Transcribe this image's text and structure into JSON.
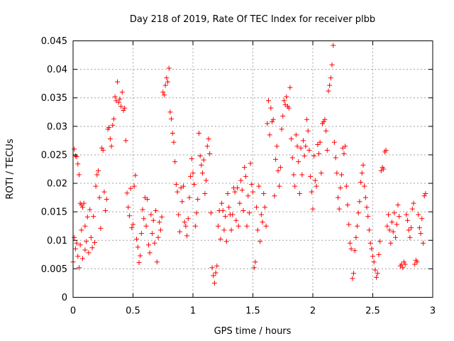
{
  "chart_data": {
    "type": "scatter",
    "title": "Day 218 of 2019, Rate Of TEC Index for receiver plbb",
    "xlabel": "GPS time / hours",
    "ylabel": "ROTI / TECUs",
    "xlim": [
      0,
      3
    ],
    "ylim": [
      0,
      0.045
    ],
    "xticks": [
      0,
      0.5,
      1,
      1.5,
      2,
      2.5,
      3
    ],
    "xtick_labels": [
      "0",
      "0.5",
      "1",
      "1.5",
      "2",
      "2.5",
      "3"
    ],
    "yticks": [
      0,
      0.005,
      0.01,
      0.015,
      0.02,
      0.025,
      0.03,
      0.035,
      0.04,
      0.045
    ],
    "ytick_labels": [
      "0",
      "0.005",
      "0.01",
      "0.015",
      "0.02",
      "0.025",
      "0.03",
      "0.035",
      "0.04",
      "0.045"
    ],
    "grid": true,
    "marker": "+",
    "color": "#ff0000",
    "series": [
      {
        "name": "ROTI",
        "points": [
          [
            0.0,
            0.0062
          ],
          [
            0.01,
            0.026
          ],
          [
            0.01,
            0.0105
          ],
          [
            0.02,
            0.0248
          ],
          [
            0.02,
            0.0085
          ],
          [
            0.03,
            0.0095
          ],
          [
            0.03,
            0.0247
          ],
          [
            0.04,
            0.0072
          ],
          [
            0.04,
            0.0234
          ],
          [
            0.05,
            0.0052
          ],
          [
            0.05,
            0.0215
          ],
          [
            0.06,
            0.0092
          ],
          [
            0.06,
            0.0165
          ],
          [
            0.07,
            0.0162
          ],
          [
            0.07,
            0.0118
          ],
          [
            0.08,
            0.0068
          ],
          [
            0.08,
            0.0158
          ],
          [
            0.09,
            0.0165
          ],
          [
            0.1,
            0.0083
          ],
          [
            0.1,
            0.0125
          ],
          [
            0.11,
            0.0098
          ],
          [
            0.12,
            0.0141
          ],
          [
            0.13,
            0.0078
          ],
          [
            0.14,
            0.0154
          ],
          [
            0.15,
            0.0105
          ],
          [
            0.16,
            0.0087
          ],
          [
            0.17,
            0.0142
          ],
          [
            0.18,
            0.0096
          ],
          [
            0.19,
            0.0195
          ],
          [
            0.2,
            0.0215
          ],
          [
            0.21,
            0.0222
          ],
          [
            0.22,
            0.0175
          ],
          [
            0.23,
            0.0121
          ],
          [
            0.24,
            0.0262
          ],
          [
            0.25,
            0.0258
          ],
          [
            0.26,
            0.0185
          ],
          [
            0.27,
            0.0152
          ],
          [
            0.28,
            0.0172
          ],
          [
            0.29,
            0.0295
          ],
          [
            0.3,
            0.0298
          ],
          [
            0.31,
            0.0278
          ],
          [
            0.32,
            0.0265
          ],
          [
            0.33,
            0.0302
          ],
          [
            0.34,
            0.0313
          ],
          [
            0.35,
            0.0352
          ],
          [
            0.36,
            0.0345
          ],
          [
            0.37,
            0.0378
          ],
          [
            0.38,
            0.0342
          ],
          [
            0.39,
            0.0348
          ],
          [
            0.4,
            0.0335
          ],
          [
            0.41,
            0.036
          ],
          [
            0.42,
            0.0328
          ],
          [
            0.43,
            0.0332
          ],
          [
            0.44,
            0.0275
          ],
          [
            0.45,
            0.0183
          ],
          [
            0.46,
            0.0158
          ],
          [
            0.47,
            0.0143
          ],
          [
            0.48,
            0.0191
          ],
          [
            0.49,
            0.0122
          ],
          [
            0.5,
            0.0128
          ],
          [
            0.51,
            0.0195
          ],
          [
            0.52,
            0.0214
          ],
          [
            0.53,
            0.0102
          ],
          [
            0.54,
            0.0088
          ],
          [
            0.55,
            0.0061
          ],
          [
            0.56,
            0.0073
          ],
          [
            0.57,
            0.0112
          ],
          [
            0.58,
            0.0154
          ],
          [
            0.59,
            0.0138
          ],
          [
            0.6,
            0.0175
          ],
          [
            0.61,
            0.0125
          ],
          [
            0.62,
            0.0172
          ],
          [
            0.63,
            0.0092
          ],
          [
            0.64,
            0.0078
          ],
          [
            0.65,
            0.0145
          ],
          [
            0.66,
            0.0112
          ],
          [
            0.67,
            0.0135
          ],
          [
            0.68,
            0.0095
          ],
          [
            0.69,
            0.0152
          ],
          [
            0.7,
            0.0062
          ],
          [
            0.71,
            0.0105
          ],
          [
            0.72,
            0.0132
          ],
          [
            0.73,
            0.0118
          ],
          [
            0.74,
            0.0141
          ],
          [
            0.75,
            0.036
          ],
          [
            0.76,
            0.0355
          ],
          [
            0.77,
            0.0372
          ],
          [
            0.78,
            0.0385
          ],
          [
            0.79,
            0.0378
          ],
          [
            0.8,
            0.0402
          ],
          [
            0.81,
            0.0325
          ],
          [
            0.82,
            0.0313
          ],
          [
            0.83,
            0.0288
          ],
          [
            0.84,
            0.0272
          ],
          [
            0.85,
            0.0238
          ],
          [
            0.86,
            0.0198
          ],
          [
            0.87,
            0.0185
          ],
          [
            0.88,
            0.0145
          ],
          [
            0.89,
            0.0115
          ],
          [
            0.9,
            0.0192
          ],
          [
            0.91,
            0.0168
          ],
          [
            0.92,
            0.0195
          ],
          [
            0.93,
            0.0132
          ],
          [
            0.94,
            0.0125
          ],
          [
            0.95,
            0.0108
          ],
          [
            0.96,
            0.0138
          ],
          [
            0.97,
            0.0175
          ],
          [
            0.98,
            0.0212
          ],
          [
            0.99,
            0.0243
          ],
          [
            1.0,
            0.0218
          ],
          [
            1.01,
            0.0198
          ],
          [
            1.02,
            0.0125
          ],
          [
            1.03,
            0.0148
          ],
          [
            1.04,
            0.0172
          ],
          [
            1.05,
            0.0288
          ],
          [
            1.06,
            0.0248
          ],
          [
            1.07,
            0.0232
          ],
          [
            1.08,
            0.0218
          ],
          [
            1.09,
            0.0241
          ],
          [
            1.1,
            0.0182
          ],
          [
            1.11,
            0.0205
          ],
          [
            1.12,
            0.0265
          ],
          [
            1.13,
            0.0278
          ],
          [
            1.14,
            0.0252
          ],
          [
            1.15,
            0.0148
          ],
          [
            1.16,
            0.0052
          ],
          [
            1.17,
            0.0038
          ],
          [
            1.18,
            0.0025
          ],
          [
            1.19,
            0.0043
          ],
          [
            1.2,
            0.0055
          ],
          [
            1.21,
            0.0125
          ],
          [
            1.22,
            0.0152
          ],
          [
            1.23,
            0.0102
          ],
          [
            1.24,
            0.0165
          ],
          [
            1.25,
            0.0152
          ],
          [
            1.26,
            0.0118
          ],
          [
            1.27,
            0.0142
          ],
          [
            1.28,
            0.0098
          ],
          [
            1.29,
            0.0182
          ],
          [
            1.3,
            0.0158
          ],
          [
            1.31,
            0.0145
          ],
          [
            1.32,
            0.0118
          ],
          [
            1.33,
            0.0145
          ],
          [
            1.34,
            0.0192
          ],
          [
            1.35,
            0.0185
          ],
          [
            1.36,
            0.0135
          ],
          [
            1.37,
            0.0192
          ],
          [
            1.38,
            0.0125
          ],
          [
            1.39,
            0.0165
          ],
          [
            1.4,
            0.0205
          ],
          [
            1.41,
            0.0188
          ],
          [
            1.42,
            0.0152
          ],
          [
            1.43,
            0.0228
          ],
          [
            1.44,
            0.0212
          ],
          [
            1.45,
            0.0125
          ],
          [
            1.46,
            0.0178
          ],
          [
            1.47,
            0.0148
          ],
          [
            1.48,
            0.0235
          ],
          [
            1.49,
            0.0198
          ],
          [
            1.5,
            0.0185
          ],
          [
            1.51,
            0.0052
          ],
          [
            1.52,
            0.0062
          ],
          [
            1.53,
            0.0158
          ],
          [
            1.54,
            0.0118
          ],
          [
            1.55,
            0.0195
          ],
          [
            1.56,
            0.0098
          ],
          [
            1.57,
            0.0145
          ],
          [
            1.58,
            0.0132
          ],
          [
            1.59,
            0.0182
          ],
          [
            1.6,
            0.0158
          ],
          [
            1.61,
            0.0125
          ],
          [
            1.62,
            0.0305
          ],
          [
            1.63,
            0.0345
          ],
          [
            1.64,
            0.0285
          ],
          [
            1.65,
            0.0332
          ],
          [
            1.66,
            0.0308
          ],
          [
            1.67,
            0.0312
          ],
          [
            1.68,
            0.0178
          ],
          [
            1.69,
            0.0242
          ],
          [
            1.7,
            0.0265
          ],
          [
            1.71,
            0.0222
          ],
          [
            1.72,
            0.0195
          ],
          [
            1.73,
            0.0228
          ],
          [
            1.74,
            0.0295
          ],
          [
            1.75,
            0.0318
          ],
          [
            1.76,
            0.0345
          ],
          [
            1.77,
            0.0338
          ],
          [
            1.78,
            0.0352
          ],
          [
            1.79,
            0.0335
          ],
          [
            1.8,
            0.0332
          ],
          [
            1.81,
            0.0368
          ],
          [
            1.82,
            0.0278
          ],
          [
            1.83,
            0.0245
          ],
          [
            1.84,
            0.0215
          ],
          [
            1.85,
            0.0195
          ],
          [
            1.86,
            0.0285
          ],
          [
            1.87,
            0.0265
          ],
          [
            1.88,
            0.0238
          ],
          [
            1.89,
            0.0182
          ],
          [
            1.9,
            0.0262
          ],
          [
            1.91,
            0.0215
          ],
          [
            1.92,
            0.0275
          ],
          [
            1.93,
            0.0248
          ],
          [
            1.94,
            0.0265
          ],
          [
            1.95,
            0.0312
          ],
          [
            1.96,
            0.0292
          ],
          [
            1.97,
            0.0258
          ],
          [
            1.98,
            0.0212
          ],
          [
            1.99,
            0.0185
          ],
          [
            2.0,
            0.0155
          ],
          [
            2.01,
            0.0248
          ],
          [
            2.02,
            0.0205
          ],
          [
            2.03,
            0.0195
          ],
          [
            2.04,
            0.0268
          ],
          [
            2.05,
            0.0252
          ],
          [
            2.06,
            0.0272
          ],
          [
            2.07,
            0.0218
          ],
          [
            2.08,
            0.0305
          ],
          [
            2.09,
            0.0308
          ],
          [
            2.1,
            0.0312
          ],
          [
            2.11,
            0.0292
          ],
          [
            2.12,
            0.0258
          ],
          [
            2.13,
            0.0362
          ],
          [
            2.14,
            0.0372
          ],
          [
            2.15,
            0.0385
          ],
          [
            2.16,
            0.0408
          ],
          [
            2.17,
            0.0442
          ],
          [
            2.18,
            0.0272
          ],
          [
            2.19,
            0.0245
          ],
          [
            2.2,
            0.0218
          ],
          [
            2.21,
            0.0175
          ],
          [
            2.22,
            0.0155
          ],
          [
            2.23,
            0.0192
          ],
          [
            2.24,
            0.0215
          ],
          [
            2.25,
            0.0262
          ],
          [
            2.26,
            0.0252
          ],
          [
            2.27,
            0.0265
          ],
          [
            2.28,
            0.0195
          ],
          [
            2.29,
            0.0162
          ],
          [
            2.3,
            0.0128
          ],
          [
            2.31,
            0.0095
          ],
          [
            2.32,
            0.0085
          ],
          [
            2.33,
            0.0033
          ],
          [
            2.34,
            0.0042
          ],
          [
            2.35,
            0.0082
          ],
          [
            2.36,
            0.0105
          ],
          [
            2.37,
            0.0125
          ],
          [
            2.38,
            0.0148
          ],
          [
            2.39,
            0.0168
          ],
          [
            2.4,
            0.0202
          ],
          [
            2.41,
            0.0218
          ],
          [
            2.42,
            0.0232
          ],
          [
            2.43,
            0.0195
          ],
          [
            2.44,
            0.0175
          ],
          [
            2.45,
            0.0158
          ],
          [
            2.46,
            0.0142
          ],
          [
            2.47,
            0.0118
          ],
          [
            2.48,
            0.0095
          ],
          [
            2.49,
            0.0085
          ],
          [
            2.5,
            0.0072
          ],
          [
            2.51,
            0.0062
          ],
          [
            2.52,
            0.0048
          ],
          [
            2.53,
            0.0035
          ],
          [
            2.54,
            0.0042
          ],
          [
            2.55,
            0.0075
          ],
          [
            2.56,
            0.0098
          ],
          [
            2.57,
            0.0222
          ],
          [
            2.58,
            0.0228
          ],
          [
            2.59,
            0.0225
          ],
          [
            2.6,
            0.0255
          ],
          [
            2.61,
            0.0258
          ],
          [
            2.62,
            0.0125
          ],
          [
            2.63,
            0.0145
          ],
          [
            2.64,
            0.0118
          ],
          [
            2.65,
            0.0095
          ],
          [
            2.66,
            0.0132
          ],
          [
            2.67,
            0.0115
          ],
          [
            2.68,
            0.0148
          ],
          [
            2.69,
            0.0105
          ],
          [
            2.7,
            0.0128
          ],
          [
            2.71,
            0.0162
          ],
          [
            2.72,
            0.0142
          ],
          [
            2.73,
            0.0055
          ],
          [
            2.74,
            0.0058
          ],
          [
            2.75,
            0.0052
          ],
          [
            2.76,
            0.0062
          ],
          [
            2.77,
            0.0058
          ],
          [
            2.78,
            0.0145
          ],
          [
            2.79,
            0.0135
          ],
          [
            2.8,
            0.0118
          ],
          [
            2.81,
            0.0105
          ],
          [
            2.82,
            0.0122
          ],
          [
            2.83,
            0.0155
          ],
          [
            2.84,
            0.0165
          ],
          [
            2.85,
            0.0058
          ],
          [
            2.86,
            0.0065
          ],
          [
            2.87,
            0.0062
          ],
          [
            2.88,
            0.0145
          ],
          [
            2.89,
            0.0122
          ],
          [
            2.9,
            0.0112
          ],
          [
            2.91,
            0.0138
          ],
          [
            2.92,
            0.0095
          ],
          [
            2.93,
            0.0178
          ],
          [
            2.94,
            0.0182
          ]
        ]
      }
    ]
  }
}
